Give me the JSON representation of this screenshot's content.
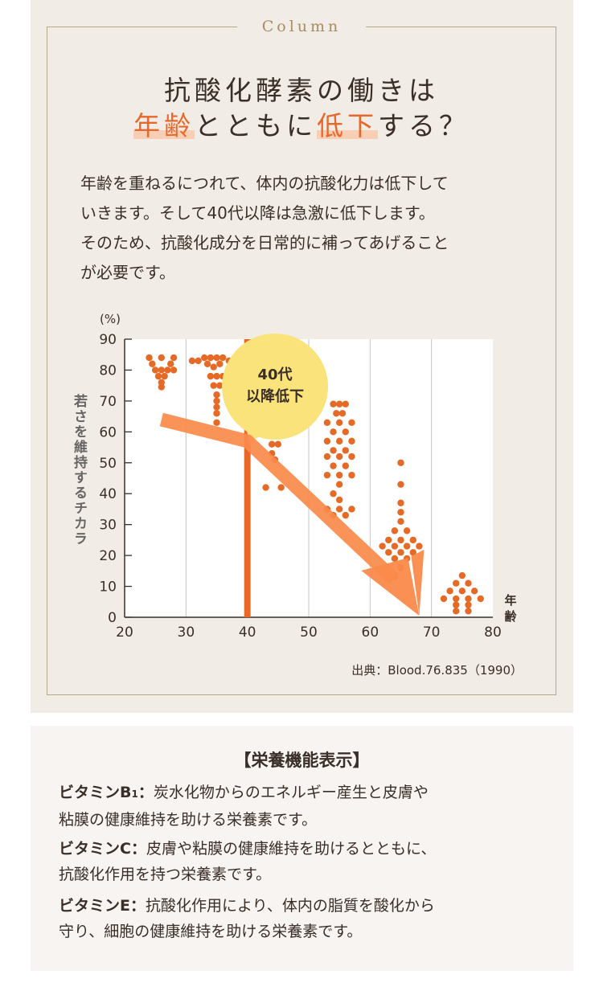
{
  "column_label": "Column",
  "headline": {
    "line1": "抗酸化酵素の働きは",
    "line2_hl1": "年齢",
    "line2_mid": "ともに",
    "line2_hl2": "低下",
    "line2_end": "する？"
  },
  "intro": [
    "年齢を重ねるにつれて、体内の抗酸化力は低下して",
    "いきます。そして40代以降は急激に低下します。",
    "そのため、抗酸化成分を日常的に補ってあげること",
    "が必要です。"
  ],
  "source": "出典：Blood.76.835（1990）",
  "colors": {
    "accent": "#e8682a",
    "dot": "#e56a26",
    "arrow": "#fa8a4a",
    "bubble": "#fae37a",
    "panel": "#f1ece5"
  },
  "chart_data": {
    "type": "scatter",
    "xlabel": "年齢",
    "ylabel": "若さを維持するチカラ",
    "yunit": "(%)",
    "xlim": [
      20,
      80
    ],
    "ylim": [
      0,
      90
    ],
    "xticks": [
      20,
      30,
      40,
      50,
      60,
      70,
      80
    ],
    "yticks": [
      0,
      10,
      20,
      30,
      40,
      50,
      60,
      70,
      80,
      90
    ],
    "grid": "vertical",
    "marker_line_x": 40,
    "annotation": {
      "line1": "40代",
      "line2": "以降低下"
    },
    "trend_arrow": {
      "from": [
        26,
        64
      ],
      "to": [
        68,
        0
      ]
    },
    "points": [
      [
        24,
        84
      ],
      [
        26,
        84
      ],
      [
        28,
        84
      ],
      [
        24.5,
        82
      ],
      [
        27.5,
        82
      ],
      [
        25,
        80
      ],
      [
        26,
        80
      ],
      [
        27,
        80
      ],
      [
        28,
        80
      ],
      [
        25.5,
        78
      ],
      [
        26.5,
        78
      ],
      [
        26,
        76
      ],
      [
        26,
        74.5
      ],
      [
        31,
        83
      ],
      [
        32,
        83
      ],
      [
        33,
        84
      ],
      [
        34,
        84
      ],
      [
        35,
        84
      ],
      [
        36,
        84
      ],
      [
        37,
        83
      ],
      [
        38,
        83
      ],
      [
        39,
        84
      ],
      [
        40,
        83
      ],
      [
        33.5,
        82
      ],
      [
        34.5,
        81
      ],
      [
        35.5,
        82
      ],
      [
        34,
        78
      ],
      [
        35,
        78
      ],
      [
        36,
        78
      ],
      [
        34.5,
        75
      ],
      [
        35.5,
        75
      ],
      [
        35,
        72
      ],
      [
        35,
        70
      ],
      [
        35,
        68
      ],
      [
        35,
        66
      ],
      [
        35,
        63
      ],
      [
        43,
        62
      ],
      [
        44,
        62
      ],
      [
        45,
        62
      ],
      [
        43.5,
        59
      ],
      [
        44.5,
        59
      ],
      [
        44,
        56
      ],
      [
        45,
        56
      ],
      [
        44,
        53
      ],
      [
        44.5,
        51
      ],
      [
        43,
        42
      ],
      [
        45.5,
        42
      ],
      [
        54,
        69
      ],
      [
        55,
        69
      ],
      [
        56,
        69
      ],
      [
        54.5,
        66
      ],
      [
        55.5,
        66
      ],
      [
        53,
        63
      ],
      [
        55,
        63
      ],
      [
        57,
        63
      ],
      [
        54,
        60
      ],
      [
        56,
        60
      ],
      [
        53,
        57
      ],
      [
        55,
        57
      ],
      [
        57,
        57
      ],
      [
        54,
        54
      ],
      [
        56,
        54
      ],
      [
        53,
        52
      ],
      [
        55,
        52
      ],
      [
        57,
        52
      ],
      [
        54,
        49
      ],
      [
        56,
        49
      ],
      [
        53,
        46
      ],
      [
        55,
        46
      ],
      [
        57,
        46
      ],
      [
        55,
        43
      ],
      [
        54,
        40
      ],
      [
        55,
        38
      ],
      [
        53,
        35
      ],
      [
        55,
        35
      ],
      [
        57,
        35
      ],
      [
        54,
        33
      ],
      [
        56,
        33
      ],
      [
        65,
        50
      ],
      [
        65,
        43
      ],
      [
        65,
        37
      ],
      [
        65,
        34
      ],
      [
        65,
        31
      ],
      [
        64,
        28
      ],
      [
        66,
        28
      ],
      [
        63,
        25
      ],
      [
        65,
        25
      ],
      [
        67,
        25
      ],
      [
        62,
        23
      ],
      [
        64,
        23
      ],
      [
        66,
        23
      ],
      [
        68,
        23
      ],
      [
        63,
        21
      ],
      [
        65,
        21
      ],
      [
        67,
        21
      ],
      [
        64,
        19
      ],
      [
        66,
        19
      ],
      [
        65,
        16
      ],
      [
        64,
        13
      ],
      [
        75,
        13.5
      ],
      [
        74,
        11
      ],
      [
        76,
        11
      ],
      [
        73,
        8.5
      ],
      [
        75,
        8.5
      ],
      [
        77,
        8.5
      ],
      [
        72,
        6
      ],
      [
        74,
        6
      ],
      [
        76,
        6
      ],
      [
        78,
        6
      ],
      [
        74,
        4
      ],
      [
        76,
        4
      ],
      [
        74,
        2
      ],
      [
        76,
        2
      ]
    ]
  },
  "nutrition": {
    "title": "【栄養機能表示】",
    "items": [
      {
        "name": "ビタミンB",
        "sub": "1",
        "sep": "：",
        "lines": [
          "炭水化物からのエネルギー産生と皮膚や",
          "粘膜の健康維持を助ける栄養素です。"
        ]
      },
      {
        "name": "ビタミンC",
        "sub": "",
        "sep": "：",
        "lines": [
          "皮膚や粘膜の健康維持を助けるとともに、",
          "抗酸化作用を持つ栄養素です。"
        ]
      },
      {
        "name": "ビタミンE",
        "sub": "",
        "sep": "：",
        "lines": [
          "抗酸化作用により、体内の脂質を酸化から",
          "守り、細胞の健康維持を助ける栄養素です。"
        ]
      }
    ]
  }
}
